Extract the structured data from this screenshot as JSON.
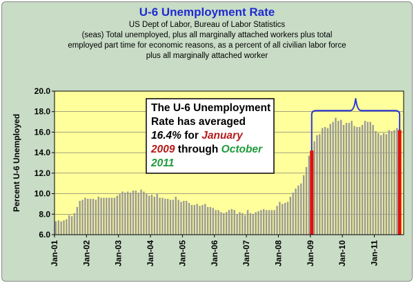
{
  "chart_data": {
    "type": "bar",
    "title": "U-6 Unemployment Rate",
    "subtitle_lines": [
      "US Dept of Labor, Bureau of Labor Statistics",
      "(seas) Total unemployed,  plus all marginally  attached workers plus total",
      "employed part time for economic reasons, as a percent of all civilian labor force",
      "plus all marginally  attached worker"
    ],
    "ylabel": "Percent U-6 Unemployed",
    "xlabel": "",
    "ylim": [
      6.0,
      20.0
    ],
    "yticks": [
      "6.0",
      "8.0",
      "10.0",
      "12.0",
      "14.0",
      "16.0",
      "18.0",
      "20.0"
    ],
    "xticks": [
      "Jan-01",
      "Jan-02",
      "Jan-03",
      "Jan-04",
      "Jan-05",
      "Jan-06",
      "Jan-07",
      "Jan-08",
      "Jan-09",
      "Jan-10",
      "Jan-11"
    ],
    "grid": true,
    "x_start": "2001-01",
    "values": [
      7.3,
      7.4,
      7.3,
      7.4,
      7.5,
      7.9,
      7.8,
      8.1,
      8.7,
      9.3,
      9.4,
      9.6,
      9.5,
      9.5,
      9.5,
      9.4,
      9.7,
      9.6,
      9.6,
      9.6,
      9.6,
      9.6,
      9.6,
      9.8,
      10.0,
      10.2,
      10.1,
      10.2,
      10.1,
      10.3,
      10.3,
      10.1,
      10.4,
      10.2,
      10.0,
      9.8,
      9.9,
      9.7,
      10.0,
      9.6,
      9.6,
      9.5,
      9.5,
      9.4,
      9.4,
      9.7,
      9.4,
      9.2,
      9.3,
      9.3,
      9.1,
      8.9,
      8.9,
      9.0,
      8.8,
      8.9,
      9.0,
      8.7,
      8.7,
      8.6,
      8.4,
      8.4,
      8.2,
      8.1,
      8.2,
      8.4,
      8.5,
      8.4,
      8.0,
      8.2,
      8.1,
      7.9,
      8.4,
      8.1,
      8.0,
      8.2,
      8.3,
      8.4,
      8.5,
      8.4,
      8.4,
      8.4,
      8.4,
      8.8,
      9.2,
      9.0,
      9.1,
      9.2,
      9.7,
      10.1,
      10.5,
      10.8,
      11.0,
      11.8,
      12.6,
      13.7,
      14.2,
      15.1,
      15.7,
      15.8,
      16.4,
      16.5,
      16.4,
      16.8,
      17.0,
      17.4,
      17.1,
      17.2,
      16.7,
      16.9,
      16.9,
      17.1,
      16.6,
      16.5,
      16.5,
      16.7,
      17.1,
      17.0,
      17.0,
      16.7,
      16.1,
      15.9,
      15.7,
      15.9,
      15.8,
      16.2,
      16.1,
      16.2,
      16.4,
      16.2
    ],
    "highlight_months": [
      "2009-01",
      "2011-10"
    ],
    "highlight_value": 14.2,
    "colors": {
      "bar": "#9a9a9a",
      "highlight_bar": "#e01010",
      "plot_background": "#ffff9c",
      "bracket": "#2a36d8"
    },
    "annotation": {
      "line1": "The U-6 Unemployment",
      "line2": "Rate has averaged",
      "average": "16.4%",
      "for": " for ",
      "start_month": "January",
      "start_year": "2009",
      "through": " through ",
      "end_month": "October",
      "end_year": "2011",
      "colors": {
        "text": "#000000",
        "start": "#b51a1a",
        "end": "#1e9a3a"
      }
    }
  }
}
